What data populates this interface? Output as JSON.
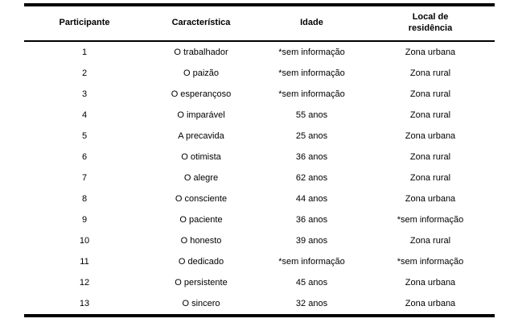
{
  "table": {
    "headers": [
      "Participante",
      "Característica",
      "Idade",
      "Local de residência"
    ],
    "rows": [
      [
        "1",
        "O trabalhador",
        "*sem informação",
        "Zona urbana"
      ],
      [
        "2",
        "O paizão",
        "*sem informação",
        "Zona rural"
      ],
      [
        "3",
        "O esperançoso",
        "*sem informação",
        "Zona rural"
      ],
      [
        "4",
        "O imparável",
        "55 anos",
        "Zona rural"
      ],
      [
        "5",
        "A precavida",
        "25 anos",
        "Zona urbana"
      ],
      [
        "6",
        "O otimista",
        "36 anos",
        "Zona rural"
      ],
      [
        "7",
        "O alegre",
        "62 anos",
        "Zona rural"
      ],
      [
        "8",
        "O consciente",
        "44 anos",
        "Zona urbana"
      ],
      [
        "9",
        "O paciente",
        "36 anos",
        "*sem informação"
      ],
      [
        "10",
        "O honesto",
        "39 anos",
        "Zona rural"
      ],
      [
        "11",
        "O dedicado",
        "*sem informação",
        "*sem informação"
      ],
      [
        "12",
        "O persistente",
        "45 anos",
        "Zona urbana"
      ],
      [
        "13",
        "O sincero",
        "32 anos",
        "Zona urbana"
      ]
    ],
    "border_color": "#000000",
    "text_color": "#000000",
    "background_color": "#ffffff"
  }
}
